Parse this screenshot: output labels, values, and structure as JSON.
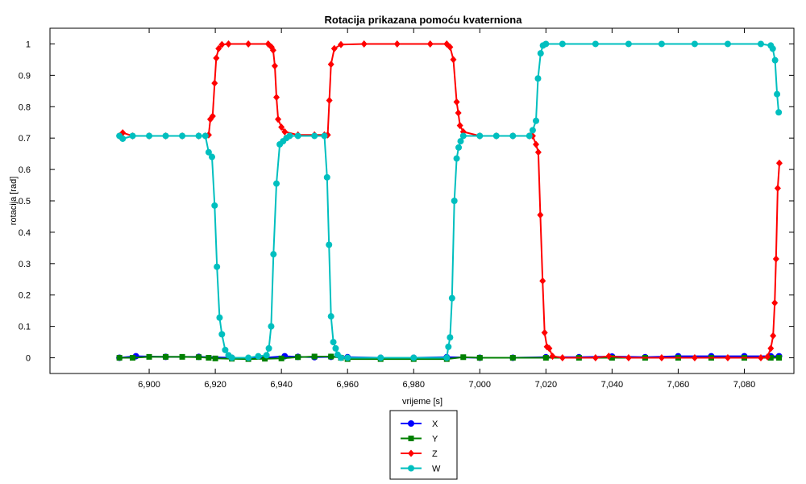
{
  "chart_data": {
    "type": "line",
    "title": "Rotacija prikazana pomoću kvaterniona",
    "xlabel": "vrijeme [s]",
    "ylabel": "rotacija [rad]",
    "xlim": [
      6870,
      7095
    ],
    "ylim": [
      -0.05,
      1.05
    ],
    "x_ticks": [
      6900,
      6920,
      6940,
      6960,
      6980,
      7000,
      7020,
      7040,
      7060,
      7080
    ],
    "x_tick_labels": [
      "6,900",
      "6,920",
      "6,940",
      "6,960",
      "6,980",
      "7,000",
      "7,020",
      "7,040",
      "7,060",
      "7,080"
    ],
    "y_ticks": [
      0,
      0.1,
      0.2,
      0.3,
      0.4,
      0.5,
      0.6,
      0.7,
      0.8,
      0.9,
      1
    ],
    "y_tick_labels": [
      "0",
      "0.1",
      "0.2",
      "0.3",
      "0.4",
      "0.5",
      "0.6",
      "0.7",
      "0.8",
      "0.9",
      "1"
    ],
    "grid": false,
    "legend_position": "bottom-center",
    "series": [
      {
        "name": "X",
        "color": "#0000ff",
        "marker": "circle",
        "x": [
          6891,
          6896,
          6905,
          6915,
          6925,
          6935,
          6941,
          6945,
          6950,
          6955,
          6960,
          6970,
          6980,
          6990,
          7000,
          7010,
          7020,
          7030,
          7040,
          7050,
          7060,
          7070,
          7080,
          7088,
          7090.5
        ],
        "y": [
          0,
          0.005,
          0.003,
          0.003,
          0,
          0,
          0.005,
          0.003,
          0.002,
          0.003,
          0.002,
          0,
          0,
          0.002,
          0,
          0,
          0.002,
          0.002,
          0.004,
          0.002,
          0.005,
          0.005,
          0.005,
          0.005,
          0.005
        ]
      },
      {
        "name": "Y",
        "color": "#008000",
        "marker": "square",
        "x": [
          6891,
          6895,
          6900,
          6905,
          6910,
          6915,
          6918,
          6920,
          6925,
          6930,
          6935,
          6940,
          6945,
          6950,
          6955,
          6958,
          6960,
          6970,
          6980,
          6990,
          6995,
          7000,
          7010,
          7020,
          7030,
          7040,
          7050,
          7060,
          7070,
          7080,
          7088,
          7090.5
        ],
        "y": [
          0,
          0,
          0.003,
          0.003,
          0.003,
          0.002,
          0,
          -0.002,
          -0.003,
          -0.004,
          -0.003,
          -0.002,
          0.002,
          0.004,
          0.004,
          0,
          -0.004,
          -0.004,
          -0.004,
          -0.004,
          0.002,
          0,
          0,
          0,
          0,
          0,
          0,
          0,
          0,
          0,
          0,
          0
        ]
      },
      {
        "name": "Z",
        "color": "#ff0000",
        "marker": "diamond",
        "x": [
          6891,
          6892,
          6895,
          6900,
          6905,
          6910,
          6915,
          6917,
          6918,
          6918.5,
          6919.2,
          6919.8,
          6920.3,
          6921,
          6922,
          6924,
          6930,
          6936,
          6937,
          6937.5,
          6938,
          6938.5,
          6939,
          6940,
          6941,
          6945,
          6950,
          6953,
          6954,
          6954.5,
          6955,
          6956,
          6958,
          6965,
          6975,
          6985,
          6990,
          6991,
          6992,
          6993,
          6993.5,
          6994,
          6995,
          7000,
          7005,
          7010,
          7015,
          7016,
          7017,
          7017.7,
          7018.3,
          7019,
          7019.6,
          7020.3,
          7021,
          7022,
          7025,
          7035,
          7039,
          7045,
          7055,
          7065,
          7075,
          7085,
          7087,
          7088,
          7088.7,
          7089.2,
          7089.6,
          7090.1,
          7090.6
        ],
        "y": [
          0.707,
          0.717,
          0.707,
          0.707,
          0.707,
          0.707,
          0.707,
          0.707,
          0.71,
          0.76,
          0.77,
          0.875,
          0.955,
          0.985,
          0.998,
          1,
          1,
          1,
          0.99,
          0.98,
          0.93,
          0.83,
          0.76,
          0.735,
          0.72,
          0.71,
          0.71,
          0.71,
          0.71,
          0.82,
          0.935,
          0.985,
          0.998,
          1,
          1,
          1,
          1,
          0.99,
          0.95,
          0.815,
          0.78,
          0.74,
          0.72,
          0.707,
          0.707,
          0.707,
          0.707,
          0.707,
          0.68,
          0.655,
          0.455,
          0.245,
          0.08,
          0.035,
          0.03,
          0.005,
          0,
          0,
          0.005,
          0,
          0,
          0,
          0,
          0,
          0.003,
          0.03,
          0.07,
          0.175,
          0.315,
          0.54,
          0.62
        ]
      },
      {
        "name": "W",
        "color": "#00bfbf",
        "marker": "circle",
        "x": [
          6891,
          6892,
          6895,
          6900,
          6905,
          6910,
          6915,
          6917,
          6918,
          6919,
          6919.8,
          6920.5,
          6921.3,
          6922,
          6923,
          6924,
          6925,
          6930,
          6933,
          6935.5,
          6936.2,
          6936.9,
          6937.6,
          6938.5,
          6939.5,
          6940.5,
          6941.5,
          6942.5,
          6945,
          6950,
          6953,
          6953.8,
          6954.4,
          6955,
          6955.7,
          6956.4,
          6957,
          6958,
          6960,
          6970,
          6980,
          6990,
          6990.5,
          6991,
          6991.6,
          6992.3,
          6993,
          6993.6,
          6994.2,
          6995,
          7000,
          7005,
          7010,
          7015,
          7016,
          7017,
          7017.6,
          7018.4,
          7019.1,
          7020,
          7025,
          7035,
          7045,
          7055,
          7065,
          7075,
          7085,
          7088,
          7088.6,
          7089.3,
          7089.9,
          7090.4
        ],
        "y": [
          0.707,
          0.698,
          0.707,
          0.707,
          0.707,
          0.707,
          0.707,
          0.707,
          0.655,
          0.64,
          0.485,
          0.29,
          0.128,
          0.075,
          0.025,
          0.008,
          0,
          0,
          0.005,
          0.008,
          0.03,
          0.1,
          0.33,
          0.555,
          0.68,
          0.69,
          0.7,
          0.707,
          0.707,
          0.707,
          0.707,
          0.575,
          0.36,
          0.132,
          0.05,
          0.03,
          0.01,
          0,
          0,
          0,
          0,
          0,
          0.035,
          0.065,
          0.19,
          0.5,
          0.635,
          0.67,
          0.69,
          0.707,
          0.707,
          0.707,
          0.707,
          0.707,
          0.725,
          0.755,
          0.89,
          0.97,
          0.995,
          1,
          1,
          1,
          1,
          1,
          1,
          1,
          1,
          0.995,
          0.985,
          0.948,
          0.84,
          0.782
        ]
      }
    ]
  }
}
